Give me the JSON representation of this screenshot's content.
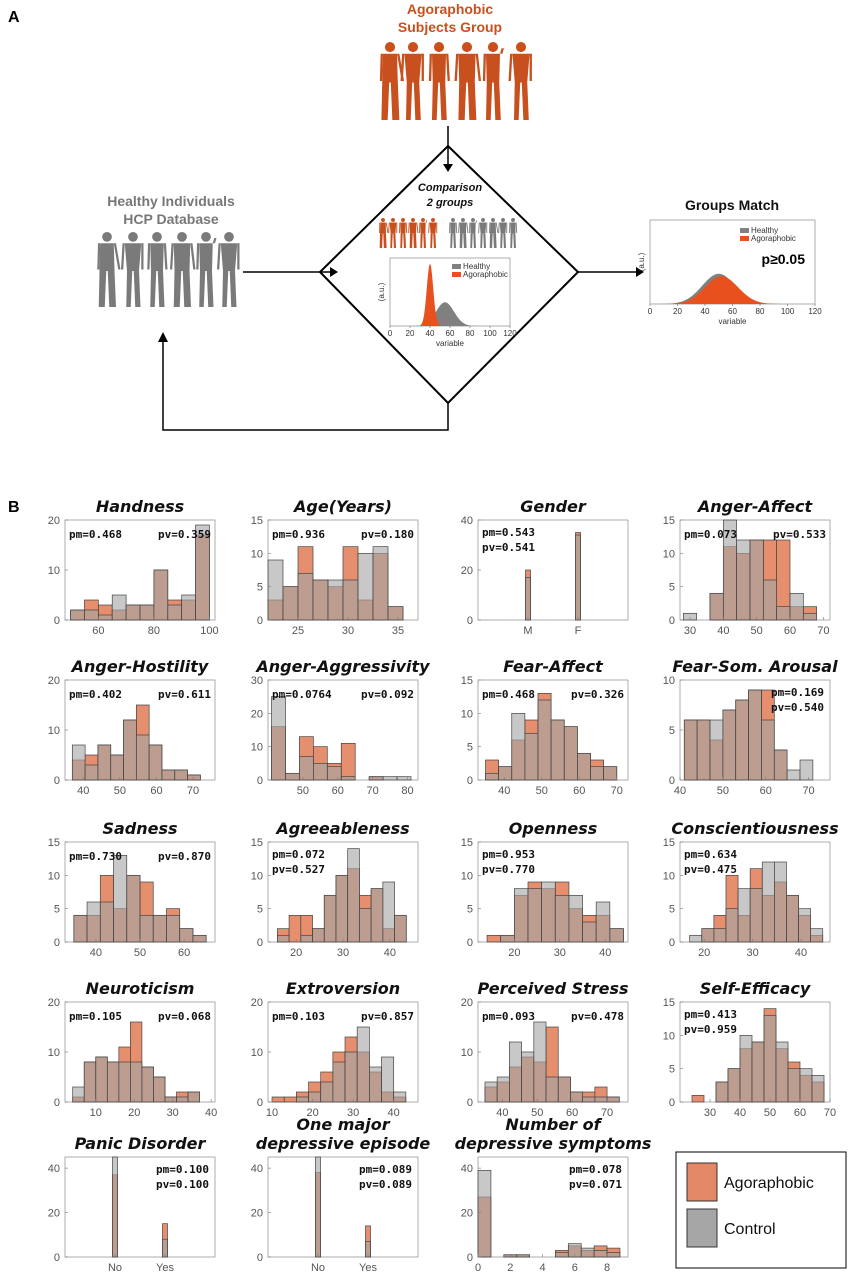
{
  "panel_a": {
    "letter": "A",
    "agoraphobic_title_1": "Agoraphobic",
    "agoraphobic_title_2": "Subjects Group",
    "healthy_title_1": "Healthy Individuals",
    "healthy_title_2": "HCP Database",
    "comparison_1": "Comparison",
    "comparison_2": "2 groups",
    "groups_match": "Groups Match",
    "pvalue": "p≥0.05",
    "legend_healthy": "Healthy",
    "legend_agoraphobic": "Agoraphobic",
    "ylabel": "(a.u.)",
    "xlabel": "variable",
    "xticks": [
      "0",
      "20",
      "40",
      "60",
      "80",
      "100",
      "120"
    ],
    "colors": {
      "agoraphobic": "#c8501e",
      "healthy": "#7a7a7a",
      "fill_ago": "#e8501e",
      "fill_healthy": "#808080"
    }
  },
  "panel_b": {
    "letter": "B",
    "legend": {
      "agoraphobic": "Agoraphobic",
      "control": "Control"
    },
    "colors": {
      "agoraphobic": "#e07b55",
      "control": "#a6a6a6",
      "overlap": "#9a7a6e"
    }
  },
  "chart_data": [
    {
      "type": "histogram",
      "title": "Handness",
      "xlim": [
        48,
        102
      ],
      "ylim": [
        0,
        20
      ],
      "yticks": [
        0,
        10,
        20
      ],
      "xticks": [
        60,
        80,
        100
      ],
      "pm": "pm=0.468",
      "pv": "pv=0.359",
      "stat_layout": "row-left",
      "bin_edges": [
        50,
        55,
        60,
        65,
        70,
        75,
        80,
        85,
        90,
        95,
        100
      ],
      "agoraphobic": [
        2,
        4,
        3,
        2,
        3,
        3,
        10,
        4,
        4,
        17
      ],
      "control": [
        2,
        2,
        1,
        5,
        3,
        3,
        10,
        3,
        5,
        19
      ]
    },
    {
      "type": "histogram",
      "title": "Age(Years)",
      "xlim": [
        22,
        37
      ],
      "ylim": [
        0,
        15
      ],
      "yticks": [
        0,
        5,
        10,
        15
      ],
      "xticks": [
        25,
        30,
        35
      ],
      "pm": "pm=0.936",
      "pv": "pv=0.180",
      "stat_layout": "row",
      "bin_edges": [
        22,
        23.5,
        25,
        26.5,
        28,
        29.5,
        31,
        32.5,
        34,
        35.5
      ],
      "agoraphobic": [
        3,
        5,
        11,
        6,
        5,
        11,
        3,
        10,
        2,
        1
      ],
      "control": [
        9,
        5,
        7,
        6,
        6,
        6,
        10,
        11,
        2,
        3
      ]
    },
    {
      "type": "histogram",
      "title": "Gender",
      "xlim": [
        0,
        3
      ],
      "ylim": [
        0,
        40
      ],
      "yticks": [
        0,
        20,
        40
      ],
      "categories": [
        "M",
        "F"
      ],
      "xcat": [
        1,
        2
      ],
      "pm": "pm=0.543",
      "pv": "pv=0.541",
      "stat_layout": "col",
      "bin_edges": [
        0.95,
        1.05,
        1.95,
        2.05
      ],
      "agoraphobic": [
        20,
        0,
        35
      ],
      "control": [
        17,
        0,
        34
      ]
    },
    {
      "type": "histogram",
      "title": "Anger-Affect",
      "xlim": [
        27,
        72
      ],
      "ylim": [
        0,
        15
      ],
      "yticks": [
        0,
        5,
        10,
        15
      ],
      "xticks": [
        30,
        40,
        50,
        60,
        70
      ],
      "pm": "pm=0.073",
      "pv": "pv=0.533",
      "stat_layout": "row",
      "bin_edges": [
        28,
        32,
        36,
        40,
        44,
        48,
        52,
        56,
        60,
        64,
        68
      ],
      "agoraphobic": [
        0,
        0,
        4,
        11,
        10,
        12,
        12,
        12,
        2,
        2
      ],
      "control": [
        1,
        0,
        4,
        15,
        12,
        12,
        6,
        2,
        4,
        1
      ]
    },
    {
      "type": "histogram",
      "title": "Anger-Hostility",
      "xlim": [
        35,
        76
      ],
      "ylim": [
        0,
        20
      ],
      "yticks": [
        0,
        10,
        20
      ],
      "xticks": [
        40,
        50,
        60,
        70
      ],
      "pm": "pm=0.402",
      "pv": "pv=0.611",
      "stat_layout": "row",
      "bin_edges": [
        37,
        40.5,
        44,
        47.5,
        51,
        54.5,
        58,
        61.5,
        65,
        68.5,
        72
      ],
      "agoraphobic": [
        4,
        5,
        7,
        5,
        12,
        15,
        7,
        2,
        2,
        1
      ],
      "control": [
        7,
        3,
        7,
        5,
        12,
        9,
        7,
        2,
        2,
        1
      ]
    },
    {
      "type": "histogram",
      "title": "Anger-Aggressivity",
      "xlim": [
        40,
        83
      ],
      "ylim": [
        0,
        30
      ],
      "yticks": [
        0,
        10,
        20,
        30
      ],
      "xticks": [
        50,
        60,
        70,
        80
      ],
      "pm": "pm=0.0764",
      "pv": "pv=0.092",
      "stat_layout": "row",
      "bin_edges": [
        41,
        45,
        49,
        53,
        57,
        61,
        65,
        69,
        73,
        77,
        81
      ],
      "agoraphobic": [
        16,
        2,
        13,
        10,
        5,
        11,
        0,
        1,
        0,
        0
      ],
      "control": [
        25,
        2,
        7,
        5,
        4,
        1,
        0,
        1,
        1,
        1
      ]
    },
    {
      "type": "histogram",
      "title": "Fear-Affect",
      "xlim": [
        33,
        73
      ],
      "ylim": [
        0,
        15
      ],
      "yticks": [
        0,
        5,
        10,
        15
      ],
      "xticks": [
        40,
        50,
        60,
        70
      ],
      "pm": "pm=0.468",
      "pv": "pv=0.326",
      "stat_layout": "row",
      "bin_edges": [
        35,
        38.5,
        42,
        45.5,
        49,
        52.5,
        56,
        59.5,
        63,
        66.5,
        70
      ],
      "agoraphobic": [
        3,
        2,
        6,
        9,
        13,
        9,
        8,
        4,
        3,
        2
      ],
      "control": [
        1,
        2,
        10,
        7,
        12,
        9,
        8,
        4,
        2,
        2
      ]
    },
    {
      "type": "histogram",
      "title": "Fear-Som. Arousal",
      "xlim": [
        40,
        75
      ],
      "ylim": [
        0,
        10
      ],
      "yticks": [
        0,
        5,
        10
      ],
      "xticks": [
        40,
        50,
        60,
        70
      ],
      "pm": "pm=0.169",
      "pv": "pv=0.540",
      "stat_layout": "col-right",
      "bin_edges": [
        41,
        44,
        47,
        50,
        53,
        56,
        59,
        62,
        65,
        68,
        71
      ],
      "agoraphobic": [
        6,
        6,
        4,
        7,
        8,
        9,
        9,
        3,
        0,
        0
      ],
      "control": [
        6,
        6,
        6,
        7,
        8,
        9,
        6,
        3,
        1,
        2
      ]
    },
    {
      "type": "histogram",
      "title": "Sadness",
      "xlim": [
        33,
        67
      ],
      "ylim": [
        0,
        15
      ],
      "yticks": [
        0,
        5,
        10,
        15
      ],
      "xticks": [
        40,
        50,
        60
      ],
      "pm": "pm=0.730",
      "pv": "pv=0.870",
      "stat_layout": "row",
      "bin_edges": [
        35,
        38,
        41,
        44,
        47,
        50,
        53,
        56,
        59,
        62,
        65
      ],
      "agoraphobic": [
        4,
        4,
        10,
        5,
        10,
        9,
        4,
        5,
        2,
        1
      ],
      "control": [
        4,
        6,
        6,
        13,
        10,
        4,
        4,
        4,
        2,
        1
      ]
    },
    {
      "type": "histogram",
      "title": "Agreeableness",
      "xlim": [
        14,
        46
      ],
      "ylim": [
        0,
        15
      ],
      "yticks": [
        0,
        5,
        10,
        15
      ],
      "xticks": [
        20,
        30,
        40
      ],
      "pm": "pm=0.072",
      "pv": "pv=0.527",
      "stat_layout": "col",
      "bin_edges": [
        16,
        18.5,
        21,
        23.5,
        26,
        28.5,
        31,
        33.5,
        36,
        38.5,
        41,
        43.5
      ],
      "agoraphobic": [
        2,
        4,
        4,
        2,
        7,
        10,
        11,
        7,
        8,
        2,
        4
      ],
      "control": [
        1,
        0,
        1,
        2,
        7,
        10,
        14,
        5,
        8,
        9,
        4
      ]
    },
    {
      "type": "histogram",
      "title": "Openness",
      "xlim": [
        12,
        45
      ],
      "ylim": [
        0,
        15
      ],
      "yticks": [
        0,
        5,
        10,
        15
      ],
      "xticks": [
        20,
        30,
        40
      ],
      "pm": "pm=0.953",
      "pv": "pv=0.770",
      "stat_layout": "col",
      "bin_edges": [
        14,
        17,
        20,
        23,
        26,
        29,
        32,
        35,
        38,
        41,
        44
      ],
      "agoraphobic": [
        1,
        1,
        7,
        9,
        8,
        9,
        5,
        4,
        4,
        2
      ],
      "control": [
        0,
        1,
        8,
        8,
        9,
        7,
        7,
        3,
        6,
        2
      ]
    },
    {
      "type": "histogram",
      "title": "Conscientiousness",
      "xlim": [
        15,
        46
      ],
      "ylim": [
        0,
        15
      ],
      "yticks": [
        0,
        5,
        10,
        15
      ],
      "xticks": [
        20,
        30,
        40
      ],
      "pm": "pm=0.634",
      "pv": "pv=0.475",
      "stat_layout": "col",
      "bin_edges": [
        17,
        19.5,
        22,
        24.5,
        27,
        29.5,
        32,
        34.5,
        37,
        39.5,
        42,
        44.5
      ],
      "agoraphobic": [
        0,
        2,
        4,
        10,
        4,
        11,
        7,
        9,
        7,
        4,
        1
      ],
      "control": [
        1,
        2,
        2,
        5,
        8,
        8,
        12,
        12,
        7,
        5,
        2
      ]
    },
    {
      "type": "histogram",
      "title": "Neuroticism",
      "xlim": [
        2,
        41
      ],
      "ylim": [
        0,
        20
      ],
      "yticks": [
        0,
        10,
        20
      ],
      "xticks": [
        10,
        20,
        30,
        40
      ],
      "pm": "pm=0.105",
      "pv": "pv=0.068",
      "stat_layout": "row",
      "bin_edges": [
        4,
        7,
        10,
        13,
        16,
        19,
        22,
        25,
        28,
        31,
        34,
        37
      ],
      "agoraphobic": [
        1,
        8,
        9,
        8,
        11,
        16,
        7,
        5,
        1,
        2,
        2
      ],
      "control": [
        3,
        8,
        9,
        8,
        8,
        8,
        7,
        5,
        1,
        1,
        2
      ]
    },
    {
      "type": "histogram",
      "title": "Extroversion",
      "xlim": [
        9,
        46
      ],
      "ylim": [
        0,
        20
      ],
      "yticks": [
        0,
        10,
        20
      ],
      "xticks": [
        10,
        20,
        30,
        40
      ],
      "pm": "pm=0.103",
      "pv": "pv=0.857",
      "stat_layout": "row",
      "bin_edges": [
        10,
        13,
        16,
        19,
        22,
        25,
        28,
        31,
        34,
        37,
        40,
        43
      ],
      "agoraphobic": [
        1,
        1,
        2,
        4,
        6,
        10,
        13,
        10,
        6,
        2,
        1
      ],
      "control": [
        0,
        0,
        1,
        2,
        4,
        8,
        10,
        15,
        7,
        9,
        2
      ]
    },
    {
      "type": "histogram",
      "title": "Perceived Stress",
      "xlim": [
        33,
        76
      ],
      "ylim": [
        0,
        20
      ],
      "yticks": [
        0,
        10,
        20
      ],
      "xticks": [
        40,
        50,
        60,
        70
      ],
      "pm": "pm=0.093",
      "pv": "pv=0.478",
      "stat_layout": "row",
      "bin_edges": [
        35,
        38.5,
        42,
        45.5,
        49,
        52.5,
        56,
        59.5,
        63,
        66.5,
        70,
        73.5
      ],
      "agoraphobic": [
        3,
        4,
        7,
        9,
        8,
        15,
        5,
        2,
        2,
        3,
        1
      ],
      "control": [
        4,
        5,
        12,
        10,
        16,
        5,
        5,
        2,
        1,
        1,
        1
      ]
    },
    {
      "type": "histogram",
      "title": "Self-Efficacy",
      "xlim": [
        20,
        70
      ],
      "ylim": [
        0,
        15
      ],
      "yticks": [
        0,
        5,
        10,
        15
      ],
      "xticks": [
        30,
        40,
        50,
        60,
        70
      ],
      "xticklabels": [
        "30",
        "40",
        "50",
        "60",
        "70"
      ],
      "pm": "pm=0.413",
      "pv": "pv=0.959",
      "stat_layout": "col",
      "bin_edges": [
        24,
        28,
        32,
        36,
        40,
        44,
        48,
        52,
        56,
        60,
        64,
        68
      ],
      "agoraphobic": [
        1,
        0,
        3,
        5,
        8,
        9,
        14,
        8,
        6,
        4,
        3
      ],
      "control": [
        0,
        0,
        3,
        5,
        10,
        9,
        13,
        9,
        5,
        5,
        4
      ]
    },
    {
      "type": "histogram",
      "title": "Panic Disorder",
      "xlim": [
        0,
        3
      ],
      "ylim": [
        0,
        45
      ],
      "yticks": [
        0,
        20,
        40
      ],
      "categories": [
        "No",
        "Yes"
      ],
      "xcat": [
        1,
        2
      ],
      "pm": "pm=0.100",
      "pv": "pv=0.100",
      "stat_layout": "col-right",
      "bin_edges": [
        0.95,
        1.05,
        1.95,
        2.05
      ],
      "agoraphobic": [
        37,
        0,
        15
      ],
      "control": [
        45,
        0,
        8
      ]
    },
    {
      "type": "histogram",
      "title": "One major depressive episode",
      "title_lines": [
        "One major",
        "depressive episode"
      ],
      "xlim": [
        0,
        3
      ],
      "ylim": [
        0,
        45
      ],
      "yticks": [
        0,
        20,
        40
      ],
      "categories": [
        "No",
        "Yes"
      ],
      "xcat": [
        1,
        2
      ],
      "pm": "pm=0.089",
      "pv": "pv=0.089",
      "stat_layout": "col-right",
      "bin_edges": [
        0.95,
        1.05,
        1.95,
        2.05
      ],
      "agoraphobic": [
        38,
        0,
        14
      ],
      "control": [
        45,
        0,
        7
      ]
    },
    {
      "type": "histogram",
      "title": "Number of depressive symptoms",
      "title_lines": [
        "Number of",
        "depressive symptoms"
      ],
      "xlim": [
        0,
        9.3
      ],
      "ylim": [
        0,
        45
      ],
      "yticks": [
        0,
        20,
        40
      ],
      "xticks": [
        0,
        2,
        4,
        6,
        8
      ],
      "pm": "pm=0.078",
      "pv": "pv=0.071",
      "stat_layout": "col-right",
      "bin_edges": [
        0,
        0.8,
        1.6,
        2.4,
        3.2,
        4,
        4.8,
        5.6,
        6.4,
        7.2,
        8,
        8.8
      ],
      "agoraphobic": [
        27,
        0,
        1,
        1,
        0,
        0,
        3,
        5,
        3,
        5,
        4
      ],
      "control": [
        39,
        0,
        1,
        1,
        0,
        0,
        2,
        6,
        4,
        3,
        2
      ]
    }
  ]
}
